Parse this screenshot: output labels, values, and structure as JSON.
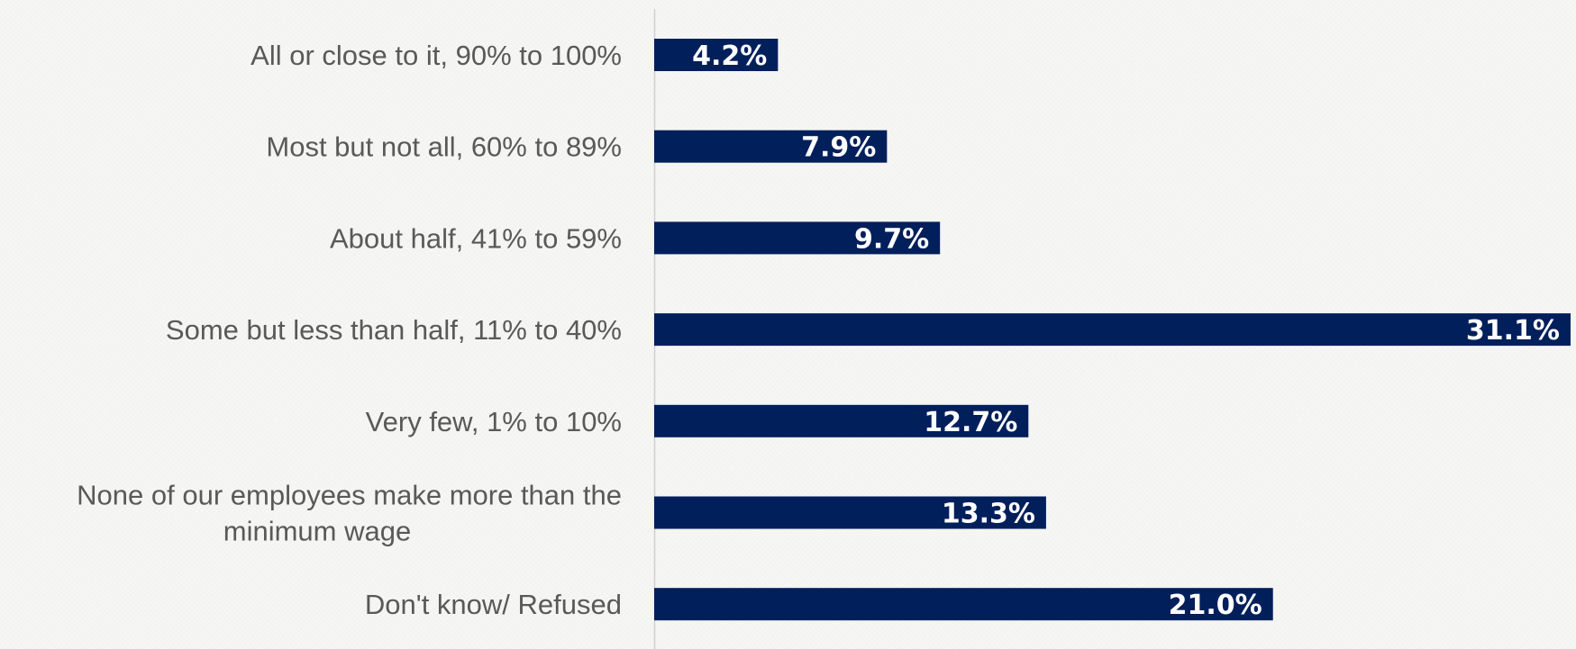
{
  "chart_data": {
    "type": "bar",
    "orientation": "horizontal",
    "categories": [
      "All or close to it, 90% to 100%",
      "Most but not all, 60% to 89%",
      "About half, 41% to 59%",
      "Some but less than half, 11% to 40%",
      "Very few, 1% to 10%",
      "None of our employees make more than the minimum wage",
      "Don't know/ Refused"
    ],
    "values": [
      4.2,
      7.9,
      9.7,
      31.1,
      12.7,
      13.3,
      21.0
    ],
    "value_labels": [
      "4.2%",
      "7.9%",
      "9.7%",
      "31.1%",
      "12.7%",
      "13.3%",
      "21.0%"
    ],
    "title": "",
    "xlabel": "",
    "ylabel": "",
    "xlim": [
      0,
      30.5
    ],
    "grid": false,
    "legend": "none",
    "bar_color": "#001f5b",
    "label_color": "#595959",
    "value_label_color": "#ffffff"
  }
}
